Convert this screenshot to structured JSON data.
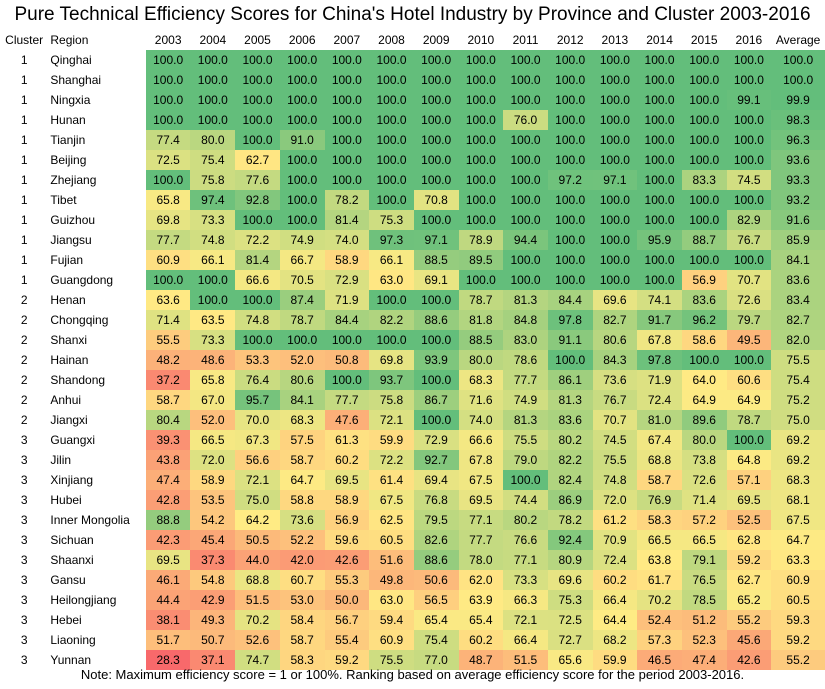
{
  "chart_data": {
    "type": "heatmap",
    "title": "Pure Technical Efficiency Scores for China's Hotel Industry by Province and Cluster 2003-2016",
    "note": "Note: Maximum efficiency score = 1 or 100%. Ranking based on average efficiency score for the period 2003-2016.",
    "headers": {
      "cluster": "Cluster",
      "region": "Region",
      "average": "Average"
    },
    "years": [
      "2003",
      "2004",
      "2005",
      "2006",
      "2007",
      "2008",
      "2009",
      "2010",
      "2011",
      "2012",
      "2013",
      "2014",
      "2015",
      "2016"
    ],
    "rows": [
      {
        "cluster": "1",
        "region": "Qinghai",
        "values": [
          "100.0",
          "100.0",
          "100.0",
          "100.0",
          "100.0",
          "100.0",
          "100.0",
          "100.0",
          "100.0",
          "100.0",
          "100.0",
          "100.0",
          "100.0",
          "100.0"
        ],
        "average": "100.0"
      },
      {
        "cluster": "1",
        "region": "Shanghai",
        "values": [
          "100.0",
          "100.0",
          "100.0",
          "100.0",
          "100.0",
          "100.0",
          "100.0",
          "100.0",
          "100.0",
          "100.0",
          "100.0",
          "100.0",
          "100.0",
          "100.0"
        ],
        "average": "100.0"
      },
      {
        "cluster": "1",
        "region": "Ningxia",
        "values": [
          "100.0",
          "100.0",
          "100.0",
          "100.0",
          "100.0",
          "100.0",
          "100.0",
          "100.0",
          "100.0",
          "100.0",
          "100.0",
          "100.0",
          "100.0",
          "99.1"
        ],
        "average": "99.9"
      },
      {
        "cluster": "1",
        "region": "Hunan",
        "values": [
          "100.0",
          "100.0",
          "100.0",
          "100.0",
          "100.0",
          "100.0",
          "100.0",
          "100.0",
          "76.0",
          "100.0",
          "100.0",
          "100.0",
          "100.0",
          "100.0"
        ],
        "average": "98.3"
      },
      {
        "cluster": "1",
        "region": "Tianjin",
        "values": [
          "77.4",
          "80.0",
          "100.0",
          "91.0",
          "100.0",
          "100.0",
          "100.0",
          "100.0",
          "100.0",
          "100.0",
          "100.0",
          "100.0",
          "100.0",
          "100.0"
        ],
        "average": "96.3"
      },
      {
        "cluster": "1",
        "region": "Beijing",
        "values": [
          "72.5",
          "75.4",
          "62.7",
          "100.0",
          "100.0",
          "100.0",
          "100.0",
          "100.0",
          "100.0",
          "100.0",
          "100.0",
          "100.0",
          "100.0",
          "100.0"
        ],
        "average": "93.6"
      },
      {
        "cluster": "1",
        "region": "Zhejiang",
        "values": [
          "100.0",
          "75.8",
          "77.6",
          "100.0",
          "100.0",
          "100.0",
          "100.0",
          "100.0",
          "100.0",
          "97.2",
          "97.1",
          "100.0",
          "83.3",
          "74.5"
        ],
        "average": "93.3"
      },
      {
        "cluster": "1",
        "region": "Tibet",
        "values": [
          "65.8",
          "97.4",
          "92.8",
          "100.0",
          "78.2",
          "100.0",
          "70.8",
          "100.0",
          "100.0",
          "100.0",
          "100.0",
          "100.0",
          "100.0",
          "100.0"
        ],
        "average": "93.2"
      },
      {
        "cluster": "1",
        "region": "Guizhou",
        "values": [
          "69.8",
          "73.3",
          "100.0",
          "100.0",
          "81.4",
          "75.3",
          "100.0",
          "100.0",
          "100.0",
          "100.0",
          "100.0",
          "100.0",
          "100.0",
          "82.9"
        ],
        "average": "91.6"
      },
      {
        "cluster": "1",
        "region": "Jiangsu",
        "values": [
          "77.7",
          "74.8",
          "72.2",
          "74.9",
          "74.0",
          "97.3",
          "97.1",
          "78.9",
          "94.4",
          "100.0",
          "100.0",
          "95.9",
          "88.7",
          "76.7"
        ],
        "average": "85.9"
      },
      {
        "cluster": "1",
        "region": "Fujian",
        "values": [
          "60.9",
          "66.1",
          "81.4",
          "66.7",
          "58.9",
          "66.1",
          "88.5",
          "89.5",
          "100.0",
          "100.0",
          "100.0",
          "100.0",
          "100.0",
          "100.0"
        ],
        "average": "84.1"
      },
      {
        "cluster": "1",
        "region": "Guangdong",
        "values": [
          "100.0",
          "100.0",
          "66.6",
          "70.5",
          "72.9",
          "63.0",
          "69.1",
          "100.0",
          "100.0",
          "100.0",
          "100.0",
          "100.0",
          "56.9",
          "70.7"
        ],
        "average": "83.6"
      },
      {
        "cluster": "2",
        "region": "Henan",
        "values": [
          "63.6",
          "100.0",
          "100.0",
          "87.4",
          "71.9",
          "100.0",
          "100.0",
          "78.7",
          "81.3",
          "84.4",
          "69.6",
          "74.1",
          "83.6",
          "72.6"
        ],
        "average": "83.4"
      },
      {
        "cluster": "2",
        "region": "Chongqing",
        "values": [
          "71.4",
          "63.5",
          "74.8",
          "78.7",
          "84.4",
          "82.2",
          "88.6",
          "81.8",
          "84.8",
          "97.8",
          "82.7",
          "91.7",
          "96.2",
          "79.7"
        ],
        "average": "82.7"
      },
      {
        "cluster": "2",
        "region": "Shanxi",
        "values": [
          "55.5",
          "73.3",
          "100.0",
          "100.0",
          "100.0",
          "100.0",
          "100.0",
          "88.5",
          "83.0",
          "91.1",
          "80.6",
          "67.8",
          "58.6",
          "49.5"
        ],
        "average": "82.0"
      },
      {
        "cluster": "2",
        "region": "Hainan",
        "values": [
          "48.2",
          "48.6",
          "53.3",
          "52.0",
          "50.8",
          "69.8",
          "93.9",
          "80.0",
          "78.6",
          "100.0",
          "84.3",
          "97.8",
          "100.0",
          "100.0"
        ],
        "average": "75.5"
      },
      {
        "cluster": "2",
        "region": "Shandong",
        "values": [
          "37.2",
          "65.8",
          "76.4",
          "80.6",
          "100.0",
          "93.7",
          "100.0",
          "68.3",
          "77.7",
          "86.1",
          "73.6",
          "71.9",
          "64.0",
          "60.6"
        ],
        "average": "75.4"
      },
      {
        "cluster": "2",
        "region": "Anhui",
        "values": [
          "58.7",
          "67.0",
          "95.7",
          "84.1",
          "77.7",
          "75.8",
          "86.7",
          "71.6",
          "74.9",
          "81.3",
          "76.7",
          "72.4",
          "64.9",
          "64.9"
        ],
        "average": "75.2"
      },
      {
        "cluster": "2",
        "region": "Jiangxi",
        "values": [
          "80.4",
          "52.0",
          "70.0",
          "68.3",
          "47.6",
          "72.1",
          "100.0",
          "74.0",
          "81.3",
          "83.6",
          "70.7",
          "81.0",
          "89.6",
          "78.7"
        ],
        "average": "75.0"
      },
      {
        "cluster": "3",
        "region": "Guangxi",
        "values": [
          "39.3",
          "66.5",
          "67.3",
          "57.5",
          "61.3",
          "59.9",
          "72.9",
          "66.6",
          "75.5",
          "80.2",
          "74.5",
          "67.4",
          "80.0",
          "100.0"
        ],
        "average": "69.2"
      },
      {
        "cluster": "3",
        "region": "Jilin",
        "values": [
          "43.8",
          "72.0",
          "56.6",
          "58.7",
          "60.2",
          "72.2",
          "92.7",
          "67.8",
          "79.0",
          "82.2",
          "75.5",
          "68.8",
          "73.8",
          "64.8"
        ],
        "average": "69.2"
      },
      {
        "cluster": "3",
        "region": "Xinjiang",
        "values": [
          "47.4",
          "58.9",
          "72.1",
          "64.7",
          "69.5",
          "61.4",
          "69.4",
          "67.5",
          "100.0",
          "82.4",
          "74.8",
          "58.7",
          "72.6",
          "57.1"
        ],
        "average": "68.3"
      },
      {
        "cluster": "3",
        "region": "Hubei",
        "values": [
          "42.8",
          "53.5",
          "75.0",
          "58.8",
          "58.9",
          "67.5",
          "76.8",
          "69.5",
          "74.4",
          "86.9",
          "72.0",
          "76.9",
          "71.4",
          "69.5"
        ],
        "average": "68.1"
      },
      {
        "cluster": "3",
        "region": "Inner Mongolia",
        "values": [
          "88.8",
          "54.2",
          "64.2",
          "73.6",
          "56.9",
          "62.5",
          "79.5",
          "77.1",
          "80.2",
          "78.2",
          "61.2",
          "58.3",
          "57.2",
          "52.5"
        ],
        "average": "67.5"
      },
      {
        "cluster": "3",
        "region": "Sichuan",
        "values": [
          "42.3",
          "45.4",
          "50.5",
          "52.2",
          "59.6",
          "60.5",
          "82.6",
          "77.7",
          "76.6",
          "92.4",
          "70.9",
          "66.5",
          "66.5",
          "62.8"
        ],
        "average": "64.7"
      },
      {
        "cluster": "3",
        "region": "Shaanxi",
        "values": [
          "69.5",
          "37.3",
          "44.0",
          "42.0",
          "42.6",
          "51.6",
          "88.6",
          "78.0",
          "77.1",
          "80.9",
          "72.4",
          "63.8",
          "79.1",
          "59.2"
        ],
        "average": "63.3"
      },
      {
        "cluster": "3",
        "region": "Gansu",
        "values": [
          "46.1",
          "54.8",
          "68.8",
          "60.7",
          "55.3",
          "49.8",
          "50.6",
          "62.0",
          "73.3",
          "69.6",
          "60.2",
          "61.7",
          "76.5",
          "62.7"
        ],
        "average": "60.9"
      },
      {
        "cluster": "3",
        "region": "Heilongjiang",
        "values": [
          "44.4",
          "42.9",
          "51.5",
          "53.0",
          "50.0",
          "63.0",
          "56.5",
          "63.9",
          "66.3",
          "75.3",
          "66.4",
          "70.2",
          "78.5",
          "65.2"
        ],
        "average": "60.5"
      },
      {
        "cluster": "3",
        "region": "Hebei",
        "values": [
          "38.1",
          "49.3",
          "70.2",
          "58.4",
          "56.7",
          "59.4",
          "65.4",
          "65.4",
          "72.1",
          "72.5",
          "64.4",
          "52.4",
          "51.2",
          "55.2"
        ],
        "average": "59.3"
      },
      {
        "cluster": "3",
        "region": "Liaoning",
        "values": [
          "51.7",
          "50.7",
          "52.6",
          "58.7",
          "55.4",
          "60.9",
          "75.4",
          "60.2",
          "66.4",
          "72.7",
          "68.2",
          "57.3",
          "52.3",
          "45.6"
        ],
        "average": "59.2"
      },
      {
        "cluster": "3",
        "region": "Yunnan",
        "values": [
          "28.3",
          "37.1",
          "74.7",
          "58.3",
          "59.2",
          "75.5",
          "77.0",
          "48.7",
          "51.5",
          "65.6",
          "59.9",
          "46.5",
          "47.4",
          "42.6"
        ],
        "average": "55.2"
      }
    ],
    "scale": {
      "min": 28.3,
      "max": 100.0
    },
    "colors": {
      "low": "#f8696b",
      "mid": "#ffeb84",
      "high": "#63be7b"
    }
  }
}
